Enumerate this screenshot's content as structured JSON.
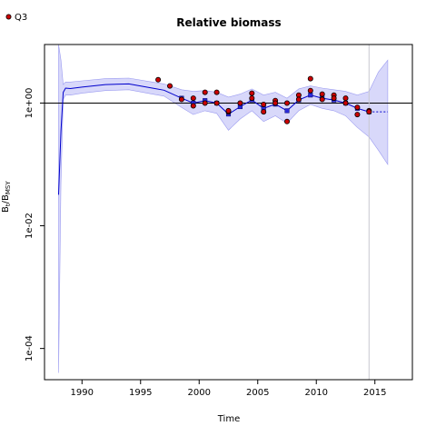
{
  "chart_data": {
    "type": "line",
    "title": "Relative biomass",
    "xlabel": "Time",
    "ylabel_main": "B",
    "ylabel_sub1": "t",
    "ylabel_mid": "/B",
    "ylabel_sub2": "MSY",
    "y_scale": "log",
    "xlim": [
      1986.8,
      2018.2
    ],
    "ylim": [
      3.1e-05,
      9.0
    ],
    "x_ticks": [
      1990,
      1995,
      2000,
      2005,
      2010,
      2015
    ],
    "y_ticks": [
      {
        "value": 1.0,
        "label": "1e+00"
      },
      {
        "value": 0.01,
        "label": "1e-02"
      },
      {
        "value": 0.0001,
        "label": "1e-04"
      }
    ],
    "reference_line": 1.0,
    "vertical_line_x": 2014.5,
    "legend": {
      "label": "Q3",
      "placement": "top-left"
    },
    "colors": {
      "line": "#0000cc",
      "band": "#d8d8fa",
      "band_edge": "#9a9af0",
      "points": "#cc0000",
      "ref": "#000000",
      "vline": "#c8c8d0"
    },
    "series": [
      {
        "name": "estimate",
        "x": [
          1988.0,
          1988.2,
          1988.4,
          1988.6,
          1989,
          1990,
          1992,
          1994,
          1996,
          1997,
          1998.5,
          1999.5,
          2000.5,
          2001.5,
          2002.5,
          2003.5,
          2004.5,
          2005.5,
          2006.5,
          2007.5,
          2008.5,
          2009.5,
          2010.5,
          2011.5,
          2012.5,
          2013.5,
          2014.5
        ],
        "y": [
          0.032,
          0.35,
          1.5,
          1.75,
          1.72,
          1.82,
          2.0,
          2.05,
          1.75,
          1.62,
          1.2,
          1.0,
          1.1,
          1.0,
          0.66,
          0.87,
          1.12,
          0.82,
          0.96,
          0.75,
          1.12,
          1.35,
          1.2,
          1.12,
          1.0,
          0.82,
          0.72
        ]
      },
      {
        "name": "projection",
        "x": [
          2014.5,
          2015.3,
          2016.1
        ],
        "y": [
          0.72,
          0.72,
          0.72
        ]
      }
    ],
    "band": {
      "x": [
        1988.0,
        1988.2,
        1988.4,
        1988.6,
        1989,
        1990,
        1992,
        1994,
        1996,
        1997,
        1998.5,
        1999.5,
        2000.5,
        2001.5,
        2002.5,
        2003.5,
        2004.5,
        2005.5,
        2006.5,
        2007.5,
        2008.5,
        2009.5,
        2010.5,
        2011.5,
        2012.5,
        2013.5,
        2014.5,
        2015.3,
        2016.1
      ],
      "lower": [
        4e-05,
        0.05,
        1.15,
        1.35,
        1.35,
        1.45,
        1.6,
        1.65,
        1.4,
        1.3,
        0.85,
        0.65,
        0.75,
        0.68,
        0.36,
        0.55,
        0.75,
        0.5,
        0.62,
        0.47,
        0.75,
        0.95,
        0.82,
        0.75,
        0.62,
        0.4,
        0.28,
        0.17,
        0.1
      ],
      "upper": [
        9.0,
        5.0,
        2.0,
        2.2,
        2.2,
        2.3,
        2.5,
        2.55,
        2.2,
        2.05,
        1.65,
        1.55,
        1.6,
        1.5,
        1.25,
        1.4,
        1.7,
        1.35,
        1.5,
        1.2,
        1.7,
        1.9,
        1.75,
        1.65,
        1.55,
        1.35,
        1.55,
        3.2,
        5.0
      ]
    },
    "observations": {
      "name": "Q3",
      "x": [
        1996.5,
        1997.5,
        1998.5,
        1999.5,
        1999.5,
        2000.5,
        2000.5,
        2001.5,
        2001.5,
        2002.5,
        2002.5,
        2003.5,
        2004.5,
        2004.5,
        2005.5,
        2005.5,
        2006.5,
        2006.5,
        2007.5,
        2007.5,
        2008.5,
        2008.5,
        2009.5,
        2009.5,
        2010.5,
        2010.5,
        2011.5,
        2011.5,
        2012.5,
        2012.5,
        2013.5,
        2013.5,
        2014.5,
        2014.5
      ],
      "y": [
        2.4,
        1.9,
        1.15,
        1.2,
        0.9,
        1.5,
        1.0,
        1.5,
        1.0,
        0.72,
        0.75,
        1.0,
        1.45,
        1.2,
        0.95,
        0.72,
        1.1,
        1.0,
        1.0,
        0.5,
        1.35,
        1.15,
        2.5,
        1.6,
        1.4,
        1.15,
        1.35,
        1.2,
        1.2,
        1.0,
        0.85,
        0.65,
        0.75,
        0.72
      ]
    }
  }
}
